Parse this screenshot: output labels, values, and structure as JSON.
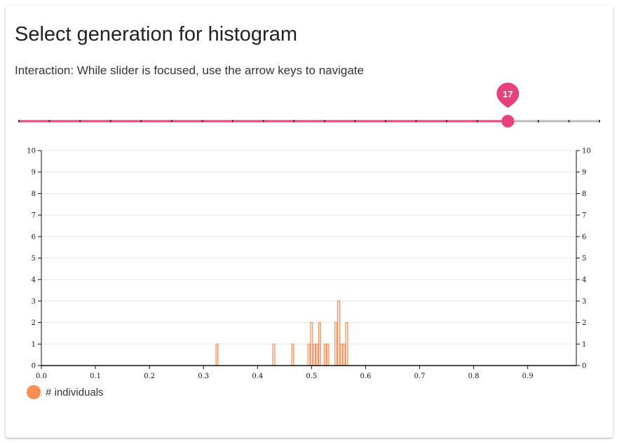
{
  "header": {
    "title": "Select generation for histogram",
    "hint": "Interaction: While slider is focused, use the arrow keys to navigate"
  },
  "slider": {
    "min": 1,
    "max": 20,
    "value": 17,
    "value_label": "17",
    "active_color": "#e8417b",
    "inactive_color": "#bbbbbb"
  },
  "legend": {
    "label": "# individuals",
    "color": "#ff8c50"
  },
  "chart_data": {
    "type": "bar",
    "bar_color": "#ff8c50",
    "bar_fill": "#fff1e8",
    "bin_width": 0.005,
    "xlim": [
      0,
      0.99
    ],
    "ylim": [
      0,
      10
    ],
    "xticks": [
      "0.0",
      "0.1",
      "0.2",
      "0.3",
      "0.4",
      "0.5",
      "0.6",
      "0.7",
      "0.8",
      "0.9"
    ],
    "yticks": [
      "0",
      "1",
      "2",
      "3",
      "4",
      "5",
      "6",
      "7",
      "8",
      "9",
      "10"
    ],
    "grid": true,
    "bins": [
      {
        "x": 0.325,
        "count": 1
      },
      {
        "x": 0.43,
        "count": 1
      },
      {
        "x": 0.465,
        "count": 1
      },
      {
        "x": 0.495,
        "count": 1
      },
      {
        "x": 0.5,
        "count": 2
      },
      {
        "x": 0.505,
        "count": 1
      },
      {
        "x": 0.51,
        "count": 1
      },
      {
        "x": 0.515,
        "count": 2
      },
      {
        "x": 0.525,
        "count": 1
      },
      {
        "x": 0.53,
        "count": 1
      },
      {
        "x": 0.545,
        "count": 2
      },
      {
        "x": 0.55,
        "count": 3
      },
      {
        "x": 0.555,
        "count": 1
      },
      {
        "x": 0.56,
        "count": 1
      },
      {
        "x": 0.565,
        "count": 2
      }
    ]
  }
}
